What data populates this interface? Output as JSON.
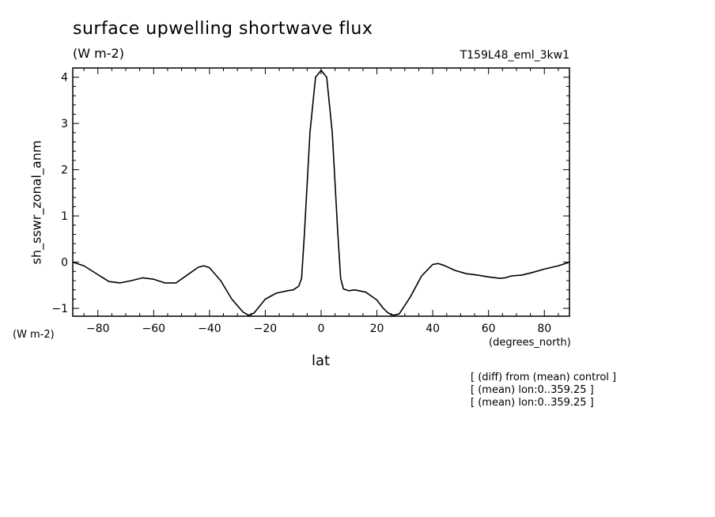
{
  "chart_data": {
    "type": "line",
    "title": "surface upwelling shortwave flux",
    "units": "(W m-2)",
    "run_label": "T159L48_eml_3kw1",
    "ylabel": "sh_sswr_zonal_anm",
    "xlabel": "lat",
    "x_units": "(degrees_north)",
    "y_units": "(W m-2)",
    "xlim": [
      -89,
      89
    ],
    "ylim": [
      -1.17,
      4.2
    ],
    "x_ticks": [
      -80,
      -60,
      -40,
      -20,
      0,
      20,
      40,
      60,
      80
    ],
    "x_tick_labels": [
      "−80",
      "−60",
      "−40",
      "−20",
      "0",
      "20",
      "40",
      "60",
      "80"
    ],
    "y_ticks": [
      -1,
      0,
      1,
      2,
      3,
      4
    ],
    "y_tick_labels": [
      "−1",
      "0",
      "1",
      "2",
      "3",
      "4"
    ],
    "grid": false,
    "line_color": "#000000",
    "x": [
      -89,
      -85,
      -80,
      -76,
      -72,
      -68,
      -64,
      -60,
      -56,
      -52,
      -48,
      -44,
      -42,
      -40,
      -36,
      -32,
      -28,
      -26,
      -24,
      -22,
      -20,
      -16,
      -12,
      -10,
      -8,
      -7,
      -6,
      -4,
      -2,
      0,
      2,
      4,
      6,
      7,
      8,
      10,
      12,
      16,
      20,
      22,
      24,
      26,
      28,
      32,
      36,
      40,
      42,
      44,
      48,
      52,
      56,
      60,
      64,
      66,
      68,
      72,
      76,
      80,
      85,
      89
    ],
    "y": [
      0.0,
      -0.08,
      -0.27,
      -0.42,
      -0.45,
      -0.4,
      -0.34,
      -0.37,
      -0.45,
      -0.45,
      -0.28,
      -0.11,
      -0.08,
      -0.12,
      -0.4,
      -0.8,
      -1.08,
      -1.15,
      -1.1,
      -0.95,
      -0.8,
      -0.67,
      -0.62,
      -0.6,
      -0.52,
      -0.35,
      0.6,
      2.8,
      4.0,
      4.15,
      4.0,
      2.8,
      0.6,
      -0.35,
      -0.58,
      -0.62,
      -0.6,
      -0.65,
      -0.82,
      -0.98,
      -1.1,
      -1.15,
      -1.12,
      -0.75,
      -0.3,
      -0.05,
      -0.03,
      -0.07,
      -0.18,
      -0.25,
      -0.28,
      -0.32,
      -0.35,
      -0.34,
      -0.3,
      -0.28,
      -0.22,
      -0.15,
      -0.08,
      0.0
    ],
    "notes": [
      "[ (diff) from (mean) control ]",
      "[ (mean) lon:0..359.25 ]",
      "[ (mean) lon:0..359.25 ]"
    ]
  }
}
